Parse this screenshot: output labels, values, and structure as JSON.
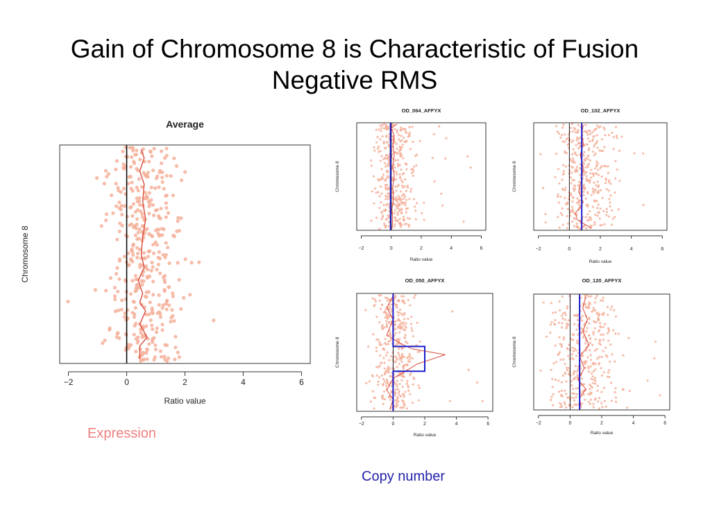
{
  "slide": {
    "title_line1": "Gain of Chromosome 8 is Characteristic of Fusion",
    "title_line2": "Negative RMS",
    "expression_label": "Expression",
    "copy_number_label": "Copy number"
  },
  "colors": {
    "points": "#f4b09a",
    "expression_line": "#d84a3a",
    "copy_number_line": "#1a1acc",
    "expression_label": "#ee8080",
    "copy_number_label": "#2222aa"
  },
  "chart_data": [
    {
      "type": "scatter",
      "title": "Average",
      "xlabel": "Ratio value",
      "ylabel": "Chromosome 8",
      "xlim": [
        -2.3,
        6.3
      ],
      "xticks": [
        -2,
        0,
        2,
        4,
        6
      ],
      "points": {
        "center": 0.6,
        "spread": 0.55,
        "min": -2.2,
        "max": 3.0,
        "count": 420,
        "seed": 11,
        "size": 2.6
      },
      "expression_line": [
        [
          0.5,
          0.02
        ],
        [
          0.6,
          0.06
        ],
        [
          0.45,
          0.12
        ],
        [
          0.6,
          0.18
        ],
        [
          0.55,
          0.26
        ],
        [
          0.65,
          0.34
        ],
        [
          0.55,
          0.42
        ],
        [
          0.5,
          0.5
        ],
        [
          0.6,
          0.56
        ],
        [
          0.4,
          0.62
        ],
        [
          0.55,
          0.68
        ],
        [
          0.45,
          0.72
        ],
        [
          0.65,
          0.76
        ],
        [
          0.45,
          0.82
        ],
        [
          0.7,
          0.88
        ],
        [
          0.45,
          0.92
        ],
        [
          0.45,
          0.98
        ]
      ],
      "copy_number": []
    },
    {
      "type": "scatter",
      "title": "OD_064_AFFYX",
      "xlabel": "Ratio value",
      "ylabel": "Chromosome 8",
      "xlim": [
        -2.3,
        6.3
      ],
      "xticks": [
        -2,
        0,
        2,
        4,
        6
      ],
      "points": {
        "center": 0.2,
        "spread": 0.6,
        "min": -2.2,
        "max": 5.8,
        "count": 380,
        "seed": 23,
        "size": 1.6
      },
      "expression_line": [
        [
          0.4,
          0.01
        ],
        [
          0.0,
          0.05
        ],
        [
          0.2,
          0.12
        ],
        [
          0.1,
          0.2
        ],
        [
          0.2,
          0.3
        ],
        [
          0.1,
          0.4
        ],
        [
          0.2,
          0.5
        ],
        [
          0.1,
          0.6
        ],
        [
          0.15,
          0.7
        ],
        [
          0.05,
          0.8
        ],
        [
          0.1,
          0.9
        ],
        [
          0.05,
          0.99
        ]
      ],
      "copy_number": [
        [
          -0.05,
          0.0
        ],
        [
          -0.05,
          1.0
        ]
      ]
    },
    {
      "type": "scatter",
      "title": "OD_102_AFFYX",
      "xlabel": "Ratio value",
      "ylabel": "Chromosome 8",
      "xlim": [
        -2.3,
        6.3
      ],
      "xticks": [
        -2,
        0,
        2,
        4,
        6
      ],
      "points": {
        "center": 1.0,
        "spread": 0.9,
        "min": -2.2,
        "max": 5.8,
        "count": 380,
        "seed": 37,
        "size": 1.6
      },
      "expression_line": [
        [
          0.9,
          0.02
        ],
        [
          0.8,
          0.1
        ],
        [
          0.9,
          0.2
        ],
        [
          0.7,
          0.3
        ],
        [
          0.9,
          0.42
        ],
        [
          0.8,
          0.52
        ],
        [
          0.6,
          0.64
        ],
        [
          0.9,
          0.74
        ],
        [
          0.4,
          0.84
        ],
        [
          0.5,
          0.9
        ],
        [
          1.4,
          0.98
        ]
      ],
      "copy_number": [
        [
          0.8,
          0.0
        ],
        [
          0.8,
          1.0
        ]
      ]
    },
    {
      "type": "scatter",
      "title": "OD_050_AFFYX",
      "xlabel": "Ratio value",
      "ylabel": "Chromosome 8",
      "xlim": [
        -2.3,
        6.3
      ],
      "xticks": [
        -2,
        0,
        2,
        4,
        6
      ],
      "points": {
        "center": 0.1,
        "spread": 0.6,
        "min": -2.2,
        "max": 5.8,
        "count": 380,
        "seed": 53,
        "size": 1.6
      },
      "expression_line": [
        [
          0.0,
          0.02
        ],
        [
          -0.4,
          0.12
        ],
        [
          0.0,
          0.22
        ],
        [
          -0.4,
          0.35
        ],
        [
          0.4,
          0.42
        ],
        [
          1.2,
          0.47
        ],
        [
          3.3,
          0.52
        ],
        [
          1.5,
          0.6
        ],
        [
          0.8,
          0.66
        ],
        [
          0.0,
          0.72
        ],
        [
          -0.4,
          0.82
        ],
        [
          0.0,
          0.9
        ],
        [
          -0.2,
          0.98
        ]
      ],
      "copy_number": [
        [
          0.0,
          0.0
        ],
        [
          0.0,
          0.45
        ],
        [
          2.0,
          0.45
        ],
        [
          2.0,
          0.66
        ],
        [
          0.0,
          0.66
        ],
        [
          0.0,
          1.0
        ]
      ]
    },
    {
      "type": "scatter",
      "title": "OD_120_AFFYX",
      "xlabel": "Ratio value",
      "ylabel": "Chromosome 8",
      "xlim": [
        -2.3,
        6.3
      ],
      "xticks": [
        -2,
        0,
        2,
        4,
        6
      ],
      "points": {
        "center": 0.8,
        "spread": 0.9,
        "min": -2.2,
        "max": 5.8,
        "count": 380,
        "seed": 71,
        "size": 1.6
      },
      "expression_line": [
        [
          1.0,
          0.02
        ],
        [
          0.8,
          0.12
        ],
        [
          1.1,
          0.22
        ],
        [
          0.8,
          0.32
        ],
        [
          1.2,
          0.44
        ],
        [
          0.6,
          0.54
        ],
        [
          0.9,
          0.64
        ],
        [
          0.5,
          0.74
        ],
        [
          1.0,
          0.82
        ],
        [
          0.6,
          0.9
        ],
        [
          0.7,
          0.98
        ]
      ],
      "copy_number": [
        [
          0.6,
          0.0
        ],
        [
          0.6,
          1.0
        ]
      ]
    }
  ]
}
